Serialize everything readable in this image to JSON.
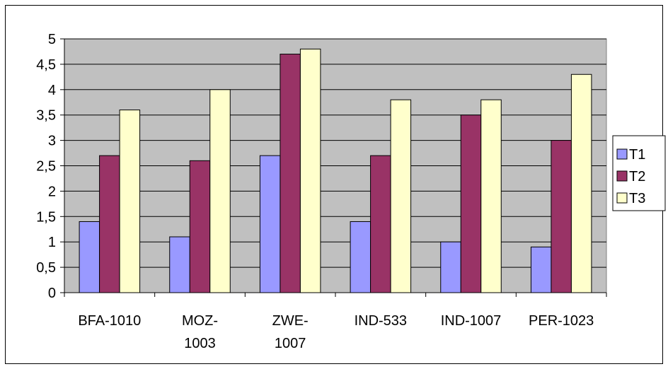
{
  "chart_data": {
    "type": "bar",
    "title": "",
    "xlabel": "",
    "ylabel": "",
    "categories": [
      [
        "BFA-1010"
      ],
      [
        "MOZ-",
        "1003"
      ],
      [
        "ZWE-",
        "1007"
      ],
      [
        "IND-533"
      ],
      [
        "IND-1007"
      ],
      [
        "PER-1023"
      ]
    ],
    "series": [
      {
        "name": "T1",
        "color": "#9999FF",
        "values": [
          1.4,
          1.1,
          2.7,
          1.4,
          1.0,
          0.9
        ]
      },
      {
        "name": "T2",
        "color": "#993366",
        "values": [
          2.7,
          2.6,
          4.7,
          2.7,
          3.5,
          3.0
        ]
      },
      {
        "name": "T3",
        "color": "#FFFFCC",
        "values": [
          3.6,
          4.0,
          4.8,
          3.8,
          3.8,
          4.3
        ]
      }
    ],
    "ylim": [
      0,
      5
    ],
    "yticks": [
      "0",
      "0,5",
      "1",
      "1,5",
      "2",
      "2,5",
      "3",
      "3,5",
      "4",
      "4,5",
      "5"
    ],
    "ytick_values": [
      0,
      0.5,
      1,
      1.5,
      2,
      2.5,
      3,
      3.5,
      4,
      4.5,
      5
    ],
    "plot_background": "#C0C0C0",
    "grid": true,
    "legend_position": "right"
  }
}
